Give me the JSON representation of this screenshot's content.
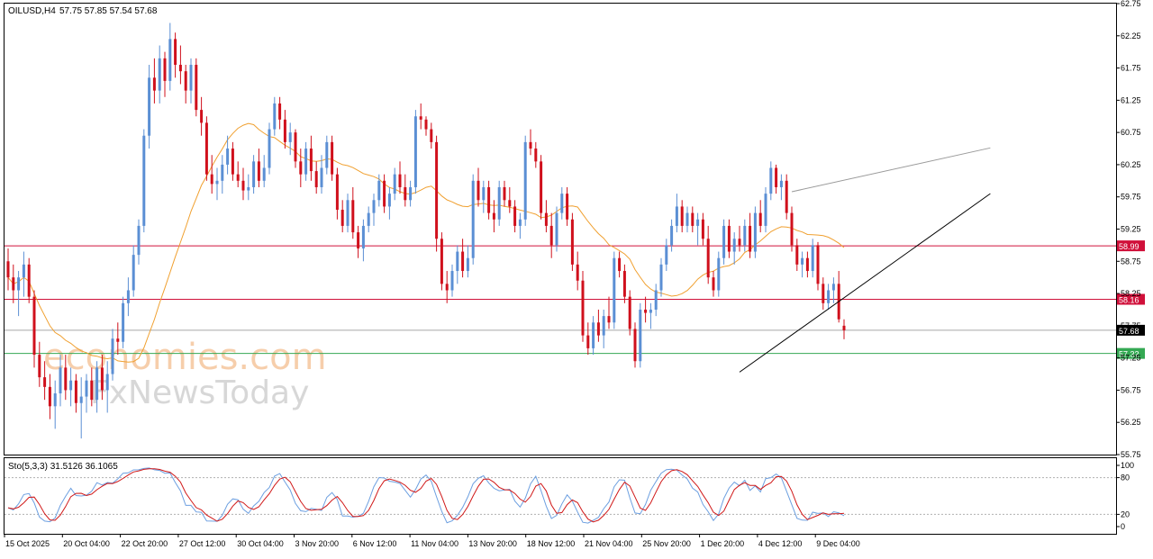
{
  "header": {
    "symbol": "OILUSD,H4",
    "ohlc": "57.75 57.85 57.54 57.68"
  },
  "watermark": {
    "line1": "economies.com",
    "line2": "FxNewsToday"
  },
  "colors": {
    "bull": "#5b8fd4",
    "bear": "#d0101c",
    "ma": "#f0a030",
    "resistance": "#d0103a",
    "support": "#34a853",
    "current": "#a8a8a8",
    "stoch_main": "#6c9fe0",
    "stoch_signal": "#d01818",
    "trendline": "#000000",
    "channel": "#9a9a9a"
  },
  "chart_data": {
    "type": "candlestick",
    "instrument": "OILUSD",
    "timeframe": "H4",
    "ylim": [
      55.75,
      62.75
    ],
    "yticks": [
      "62.75",
      "62.25",
      "61.75",
      "61.25",
      "60.75",
      "60.25",
      "59.75",
      "59.25",
      "58.75",
      "58.25",
      "57.75",
      "57.25",
      "56.75",
      "56.25",
      "55.75"
    ],
    "xticks": [
      "15 Oct 2025",
      "20 Oct 04:00",
      "22 Oct 20:00",
      "27 Oct 12:00",
      "30 Oct 04:00",
      "3 Nov 20:00",
      "6 Nov 12:00",
      "11 Nov 04:00",
      "13 Nov 20:00",
      "18 Nov 12:00",
      "21 Nov 04:00",
      "25 Nov 20:00",
      "1 Dec 20:00",
      "4 Dec 12:00",
      "9 Dec 04:00"
    ],
    "candles": [
      [
        58.75,
        58.95,
        58.3,
        58.5
      ],
      [
        58.5,
        58.7,
        58.1,
        58.3
      ],
      [
        58.3,
        58.6,
        57.9,
        58.5
      ],
      [
        58.5,
        58.9,
        58.2,
        58.7
      ],
      [
        58.7,
        58.8,
        58.1,
        58.2
      ],
      [
        58.2,
        58.3,
        57.1,
        57.3
      ],
      [
        57.3,
        57.5,
        56.8,
        56.95
      ],
      [
        56.95,
        57.2,
        56.6,
        56.8
      ],
      [
        56.8,
        57.0,
        56.3,
        56.5
      ],
      [
        56.5,
        56.9,
        56.15,
        56.7
      ],
      [
        56.7,
        57.3,
        56.5,
        57.1
      ],
      [
        57.1,
        57.3,
        56.6,
        56.75
      ],
      [
        56.75,
        57.1,
        56.5,
        56.9
      ],
      [
        56.9,
        57.0,
        56.4,
        56.55
      ],
      [
        56.55,
        56.95,
        56.0,
        56.65
      ],
      [
        56.65,
        57.0,
        56.4,
        56.9
      ],
      [
        56.9,
        57.1,
        56.5,
        56.6
      ],
      [
        56.6,
        57.2,
        56.4,
        57.1
      ],
      [
        57.1,
        57.3,
        56.6,
        56.75
      ],
      [
        56.75,
        57.2,
        56.4,
        57.0
      ],
      [
        57.0,
        57.7,
        56.9,
        57.55
      ],
      [
        57.55,
        57.8,
        57.3,
        57.5
      ],
      [
        57.5,
        58.2,
        57.4,
        58.1
      ],
      [
        58.1,
        58.5,
        57.9,
        58.3
      ],
      [
        58.3,
        59.0,
        58.2,
        58.85
      ],
      [
        58.85,
        59.4,
        58.7,
        59.3
      ],
      [
        59.3,
        60.8,
        59.2,
        60.7
      ],
      [
        60.7,
        61.8,
        60.5,
        61.6
      ],
      [
        61.6,
        61.9,
        61.2,
        61.4
      ],
      [
        61.4,
        62.1,
        61.2,
        61.9
      ],
      [
        61.9,
        62.0,
        61.3,
        61.55
      ],
      [
        61.55,
        62.45,
        61.4,
        62.2
      ],
      [
        62.2,
        62.3,
        61.6,
        61.8
      ],
      [
        61.8,
        62.1,
        61.5,
        61.7
      ],
      [
        61.7,
        61.8,
        61.2,
        61.4
      ],
      [
        61.4,
        61.9,
        61.2,
        61.8
      ],
      [
        61.8,
        61.9,
        61.0,
        61.1
      ],
      [
        61.1,
        61.3,
        60.7,
        60.9
      ],
      [
        60.9,
        61.0,
        60.0,
        60.1
      ],
      [
        60.1,
        60.4,
        59.8,
        59.95
      ],
      [
        59.95,
        60.2,
        59.7,
        60.0
      ],
      [
        60.0,
        60.4,
        59.8,
        60.25
      ],
      [
        60.25,
        60.7,
        60.1,
        60.5
      ],
      [
        60.5,
        60.6,
        60.0,
        60.1
      ],
      [
        60.1,
        60.3,
        59.9,
        60.0
      ],
      [
        60.0,
        60.2,
        59.7,
        59.85
      ],
      [
        59.85,
        60.1,
        59.7,
        59.9
      ],
      [
        59.9,
        60.4,
        59.8,
        60.3
      ],
      [
        60.3,
        60.5,
        59.9,
        60.0
      ],
      [
        60.0,
        60.4,
        59.9,
        60.2
      ],
      [
        60.2,
        60.9,
        60.1,
        60.8
      ],
      [
        60.8,
        61.3,
        60.7,
        61.2
      ],
      [
        61.2,
        61.3,
        60.8,
        60.95
      ],
      [
        60.95,
        61.1,
        60.5,
        60.6
      ],
      [
        60.6,
        60.9,
        60.4,
        60.75
      ],
      [
        60.75,
        60.8,
        60.2,
        60.3
      ],
      [
        60.3,
        60.5,
        59.9,
        60.1
      ],
      [
        60.1,
        60.6,
        60.0,
        60.5
      ],
      [
        60.5,
        60.7,
        60.0,
        60.15
      ],
      [
        60.15,
        60.3,
        59.8,
        59.9
      ],
      [
        59.9,
        60.4,
        59.8,
        60.2
      ],
      [
        60.2,
        60.7,
        60.1,
        60.6
      ],
      [
        60.6,
        60.7,
        60.0,
        60.1
      ],
      [
        60.1,
        60.2,
        59.4,
        59.55
      ],
      [
        59.55,
        59.7,
        59.2,
        59.3
      ],
      [
        59.3,
        59.8,
        59.2,
        59.7
      ],
      [
        59.7,
        59.9,
        59.1,
        59.2
      ],
      [
        59.2,
        59.3,
        58.8,
        58.95
      ],
      [
        58.95,
        59.4,
        58.75,
        59.3
      ],
      [
        59.3,
        59.6,
        59.2,
        59.5
      ],
      [
        59.5,
        59.8,
        59.3,
        59.7
      ],
      [
        59.7,
        60.1,
        59.6,
        60.0
      ],
      [
        60.0,
        60.1,
        59.5,
        59.6
      ],
      [
        59.6,
        59.9,
        59.4,
        59.8
      ],
      [
        59.8,
        60.2,
        59.7,
        60.1
      ],
      [
        60.1,
        60.3,
        59.8,
        59.9
      ],
      [
        59.9,
        60.1,
        59.6,
        59.7
      ],
      [
        59.7,
        60.0,
        59.6,
        59.9
      ],
      [
        59.9,
        61.1,
        59.8,
        61.0
      ],
      [
        61.0,
        61.2,
        60.8,
        60.95
      ],
      [
        60.95,
        61.0,
        60.7,
        60.8
      ],
      [
        60.8,
        60.9,
        60.5,
        60.6
      ],
      [
        60.6,
        60.7,
        58.9,
        59.1
      ],
      [
        59.1,
        59.2,
        58.3,
        58.4
      ],
      [
        58.4,
        58.6,
        58.1,
        58.3
      ],
      [
        58.3,
        58.7,
        58.2,
        58.6
      ],
      [
        58.6,
        59.0,
        58.4,
        58.9
      ],
      [
        58.9,
        59.1,
        58.5,
        58.6
      ],
      [
        58.6,
        59.0,
        58.5,
        58.8
      ],
      [
        58.8,
        60.1,
        58.7,
        60.0
      ],
      [
        60.0,
        60.2,
        59.6,
        59.7
      ],
      [
        59.7,
        60.0,
        59.5,
        59.9
      ],
      [
        59.9,
        60.0,
        59.4,
        59.5
      ],
      [
        59.5,
        59.7,
        59.2,
        59.4
      ],
      [
        59.4,
        60.0,
        59.3,
        59.9
      ],
      [
        59.9,
        60.0,
        59.6,
        59.7
      ],
      [
        59.7,
        59.9,
        59.5,
        59.6
      ],
      [
        59.6,
        59.7,
        59.2,
        59.3
      ],
      [
        59.3,
        59.5,
        59.1,
        59.4
      ],
      [
        59.4,
        60.7,
        59.3,
        60.6
      ],
      [
        60.6,
        60.8,
        60.4,
        60.5
      ],
      [
        60.5,
        60.6,
        60.2,
        60.3
      ],
      [
        60.3,
        60.4,
        59.4,
        59.5
      ],
      [
        59.5,
        59.7,
        59.2,
        59.3
      ],
      [
        59.3,
        59.5,
        58.8,
        59.0
      ],
      [
        59.0,
        59.6,
        58.9,
        59.5
      ],
      [
        59.5,
        59.9,
        59.4,
        59.8
      ],
      [
        59.8,
        59.9,
        59.3,
        59.4
      ],
      [
        59.4,
        59.5,
        58.6,
        58.7
      ],
      [
        58.7,
        58.9,
        58.3,
        58.45
      ],
      [
        58.45,
        58.6,
        57.5,
        57.6
      ],
      [
        57.6,
        57.8,
        57.3,
        57.4
      ],
      [
        57.4,
        57.9,
        57.3,
        57.8
      ],
      [
        57.8,
        58.0,
        57.5,
        57.6
      ],
      [
        57.6,
        58.0,
        57.4,
        57.9
      ],
      [
        57.9,
        58.2,
        57.7,
        57.8
      ],
      [
        57.8,
        58.9,
        57.7,
        58.8
      ],
      [
        58.8,
        58.9,
        58.5,
        58.6
      ],
      [
        58.6,
        58.7,
        58.1,
        58.2
      ],
      [
        58.2,
        58.3,
        57.6,
        57.7
      ],
      [
        57.7,
        57.8,
        57.1,
        57.2
      ],
      [
        57.2,
        58.1,
        57.1,
        58.0
      ],
      [
        58.0,
        58.2,
        57.8,
        57.95
      ],
      [
        57.95,
        58.1,
        57.7,
        58.0
      ],
      [
        58.0,
        58.4,
        57.9,
        58.3
      ],
      [
        58.3,
        58.8,
        58.2,
        58.7
      ],
      [
        58.7,
        59.1,
        58.6,
        59.0
      ],
      [
        59.0,
        59.4,
        58.9,
        59.3
      ],
      [
        59.3,
        59.8,
        59.2,
        59.6
      ],
      [
        59.6,
        59.7,
        59.2,
        59.3
      ],
      [
        59.3,
        59.6,
        59.2,
        59.5
      ],
      [
        59.5,
        59.6,
        59.2,
        59.3
      ],
      [
        59.3,
        59.5,
        59.0,
        59.4
      ],
      [
        59.4,
        59.5,
        59.0,
        59.1
      ],
      [
        59.1,
        59.3,
        58.4,
        58.5
      ],
      [
        58.5,
        58.6,
        58.2,
        58.3
      ],
      [
        58.3,
        58.9,
        58.2,
        58.8
      ],
      [
        58.8,
        59.4,
        58.7,
        59.3
      ],
      [
        59.3,
        59.4,
        58.8,
        58.9
      ],
      [
        58.9,
        59.2,
        58.7,
        59.1
      ],
      [
        59.1,
        59.3,
        58.9,
        59.0
      ],
      [
        59.0,
        59.4,
        58.9,
        59.3
      ],
      [
        59.3,
        59.5,
        58.8,
        58.9
      ],
      [
        58.9,
        59.6,
        58.8,
        59.5
      ],
      [
        59.5,
        59.7,
        59.2,
        59.3
      ],
      [
        59.3,
        59.9,
        59.2,
        59.8
      ],
      [
        59.8,
        60.3,
        59.7,
        60.2
      ],
      [
        60.2,
        60.25,
        59.8,
        59.9
      ],
      [
        59.9,
        60.1,
        59.7,
        60.0
      ],
      [
        60.0,
        60.1,
        59.4,
        59.5
      ],
      [
        59.5,
        59.6,
        58.9,
        59.0
      ],
      [
        59.0,
        59.1,
        58.6,
        58.7
      ],
      [
        58.7,
        58.9,
        58.5,
        58.8
      ],
      [
        58.8,
        58.9,
        58.5,
        58.6
      ],
      [
        58.6,
        59.1,
        58.5,
        59.0
      ],
      [
        59.0,
        59.05,
        58.3,
        58.4
      ],
      [
        58.4,
        58.5,
        58.0,
        58.1
      ],
      [
        58.1,
        58.4,
        58.0,
        58.3
      ],
      [
        58.3,
        58.5,
        58.1,
        58.4
      ],
      [
        58.4,
        58.6,
        57.8,
        57.85
      ],
      [
        57.75,
        57.85,
        57.54,
        57.68
      ]
    ],
    "moving_average_label": "MA (orange)",
    "levels": [
      {
        "label": "58.99",
        "value": 58.99
      },
      {
        "label": "58.16",
        "value": 58.16
      },
      {
        "label": "57.68",
        "value": 57.68
      },
      {
        "label": "57.32",
        "value": 57.32
      }
    ],
    "trendlines": [
      {
        "name": "ascending-support",
        "from": [
          140,
          57.03
        ],
        "to": [
          188,
          59.8
        ]
      },
      {
        "name": "channel-top",
        "from": [
          150,
          59.83
        ],
        "to": [
          188,
          60.51
        ]
      }
    ],
    "stochastic": {
      "label": "Sto(5,3,3) 31.5126 36.1065",
      "ylim": [
        0,
        100
      ],
      "levels": [
        "100",
        "80",
        "20",
        "0"
      ],
      "overbought": 80,
      "oversold": 20
    },
    "grid": false
  }
}
